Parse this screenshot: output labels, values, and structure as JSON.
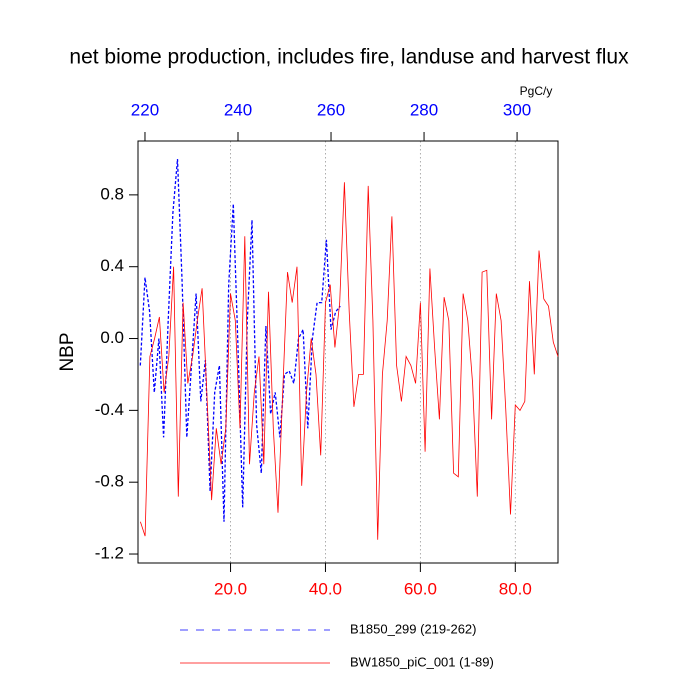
{
  "chart_data": {
    "type": "line",
    "title": "net biome production, includes fire, landuse and harvest flux",
    "y_label": "NBP",
    "units": "PgC/y",
    "xlim": [
      0.5,
      89
    ],
    "xticks": [
      {
        "value": 20,
        "label": "20.0"
      },
      {
        "value": 40,
        "label": "40.0"
      },
      {
        "value": 60,
        "label": "60.0"
      },
      {
        "value": 80,
        "label": "80.0"
      }
    ],
    "x2lim": [
      218.5,
      308.8
    ],
    "x2ticks": [
      220,
      240,
      260,
      280,
      300
    ],
    "ylim": [
      -1.25,
      1.1
    ],
    "yticks": [
      {
        "value": -1.2,
        "label": "-1.2"
      },
      {
        "value": -0.8,
        "label": "-0.8"
      },
      {
        "value": -0.4,
        "label": "-0.4"
      },
      {
        "value": 0,
        "label": "0.0"
      },
      {
        "value": 0.4,
        "label": "0.4"
      },
      {
        "value": 0.8,
        "label": "0.8"
      }
    ],
    "grid": true,
    "series": [
      {
        "name": "B1850_299 (219-262)",
        "color": "#0000ff",
        "dash": true,
        "axis": "x2",
        "x": [
          219,
          220,
          221,
          222,
          223,
          224,
          225,
          226,
          227,
          228,
          229,
          230,
          231,
          232,
          233,
          234,
          235,
          236,
          237,
          238,
          239,
          240,
          241,
          242,
          243,
          244,
          245,
          246,
          247,
          248,
          249,
          250,
          251,
          252,
          253,
          254,
          255,
          256,
          257,
          258,
          259,
          260,
          261,
          262
        ],
        "values": [
          -0.15,
          0.34,
          0.15,
          -0.3,
          0.0,
          -0.55,
          0.1,
          0.7,
          1.0,
          0.3,
          -0.55,
          -0.15,
          0.25,
          -0.35,
          -0.12,
          -0.85,
          -0.3,
          -0.15,
          -1.02,
          0.3,
          0.75,
          -0.05,
          -0.94,
          0.1,
          0.66,
          -0.48,
          -0.75,
          0.07,
          -0.42,
          -0.3,
          -0.55,
          -0.2,
          -0.18,
          -0.25,
          0.0,
          0.05,
          -0.5,
          0.0,
          0.2,
          0.2,
          0.55,
          0.05,
          0.15,
          0.18
        ]
      },
      {
        "name": "BW1850_piC_001 (1-89)",
        "color": "#ff0000",
        "dash": false,
        "axis": "x",
        "x": [
          1,
          2,
          3,
          4,
          5,
          6,
          7,
          8,
          9,
          10,
          11,
          12,
          13,
          14,
          15,
          16,
          17,
          18,
          19,
          20,
          21,
          22,
          23,
          24,
          25,
          26,
          27,
          28,
          29,
          30,
          31,
          32,
          33,
          34,
          35,
          36,
          37,
          38,
          39,
          40,
          41,
          42,
          43,
          44,
          45,
          46,
          47,
          48,
          49,
          50,
          51,
          52,
          53,
          54,
          55,
          56,
          57,
          58,
          59,
          60,
          61,
          62,
          63,
          64,
          65,
          66,
          67,
          68,
          69,
          70,
          71,
          72,
          73,
          74,
          75,
          76,
          77,
          78,
          79,
          80,
          81,
          82,
          83,
          84,
          85,
          86,
          87,
          88,
          89
        ],
        "values": [
          -1.02,
          -1.1,
          -0.1,
          0.0,
          0.12,
          -0.3,
          -0.1,
          0.4,
          -0.88,
          0.2,
          -0.25,
          -0.1,
          0.1,
          0.28,
          -0.3,
          -0.9,
          -0.5,
          -0.7,
          -0.5,
          0.25,
          0.1,
          -0.5,
          0.57,
          -0.7,
          -0.3,
          -0.1,
          -0.7,
          0.26,
          -0.5,
          -0.97,
          -0.3,
          0.37,
          0.2,
          0.4,
          -0.82,
          -0.3,
          0.0,
          -0.2,
          -0.65,
          0.2,
          0.3,
          -0.05,
          0.2,
          0.87,
          0.15,
          -0.38,
          -0.2,
          -0.2,
          0.85,
          0.1,
          -1.12,
          -0.2,
          0.1,
          0.68,
          -0.15,
          -0.35,
          -0.1,
          -0.15,
          -0.25,
          0.2,
          -0.63,
          0.39,
          -0.05,
          -0.45,
          0.23,
          0.1,
          -0.75,
          -0.77,
          0.25,
          0.1,
          -0.25,
          -0.88,
          0.37,
          0.38,
          -0.45,
          0.25,
          0.1,
          -0.4,
          -0.98,
          -0.37,
          -0.4,
          -0.35,
          0.32,
          -0.2,
          0.49,
          0.22,
          0.18,
          -0.02,
          -0.1
        ]
      }
    ]
  }
}
